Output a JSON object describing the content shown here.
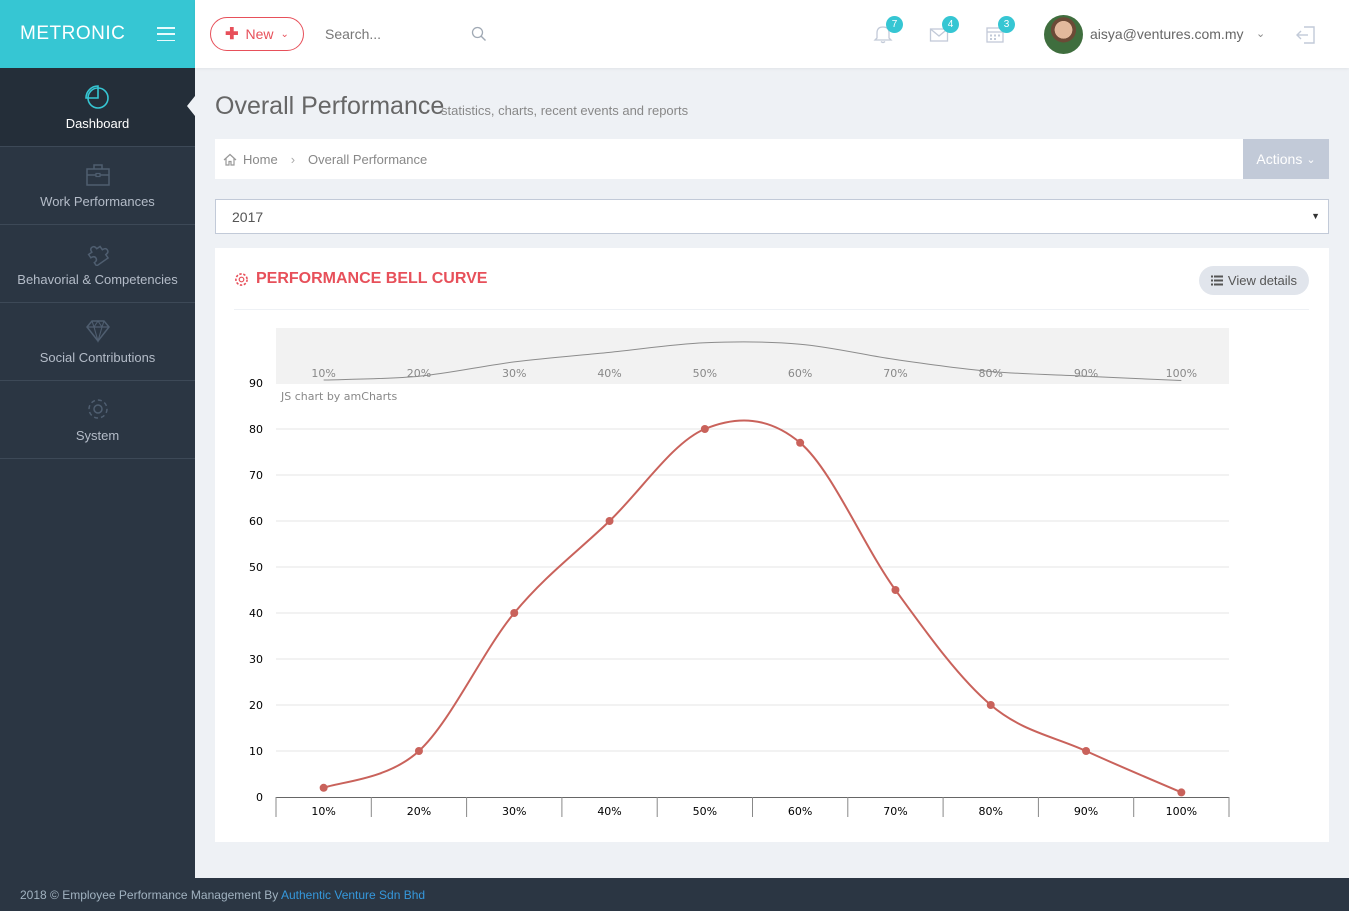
{
  "brand": {
    "name": "METRONIC"
  },
  "header": {
    "new_label": "New",
    "search_placeholder": "Search...",
    "notifications": "7",
    "inbox": "4",
    "tasks": "3",
    "username": "aisya@ventures.com.my"
  },
  "sidebar": {
    "items": [
      {
        "label": "Dashboard",
        "icon": "pie-chart-icon",
        "active": true
      },
      {
        "label": "Work Performances",
        "icon": "briefcase-icon"
      },
      {
        "label": "Behavorial & Competencies",
        "icon": "puzzle-icon"
      },
      {
        "label": "Social Contributions",
        "icon": "diamond-icon"
      },
      {
        "label": "System",
        "icon": "gear-icon"
      }
    ]
  },
  "page": {
    "title": "Overall Performance",
    "subtitle": "statistics, charts, recent events and reports",
    "breadcrumb_home": "Home",
    "breadcrumb_current": "Overall Performance",
    "actions_label": "Actions",
    "year_selected": "2017"
  },
  "portlet": {
    "title": "PERFORMANCE BELL CURVE",
    "view_details_label": "View details"
  },
  "chart_data": {
    "type": "line",
    "smoothed": true,
    "categories": [
      "10%",
      "20%",
      "30%",
      "40%",
      "50%",
      "60%",
      "70%",
      "80%",
      "90%",
      "100%"
    ],
    "series": [
      {
        "values": [
          2,
          10,
          40,
          60,
          80,
          77,
          45,
          20,
          10,
          1
        ]
      }
    ],
    "ylim": [
      0,
      90
    ],
    "yticks": [
      0,
      10,
      20,
      30,
      40,
      50,
      60,
      70,
      80,
      90
    ],
    "grid": true,
    "watermark": "JS chart by amCharts",
    "line_color": "#c9625b",
    "scrollbar": true
  },
  "footer": {
    "text": "2018 © Employee Performance Management By ",
    "link": "Authentic Venture Sdn Bhd"
  }
}
